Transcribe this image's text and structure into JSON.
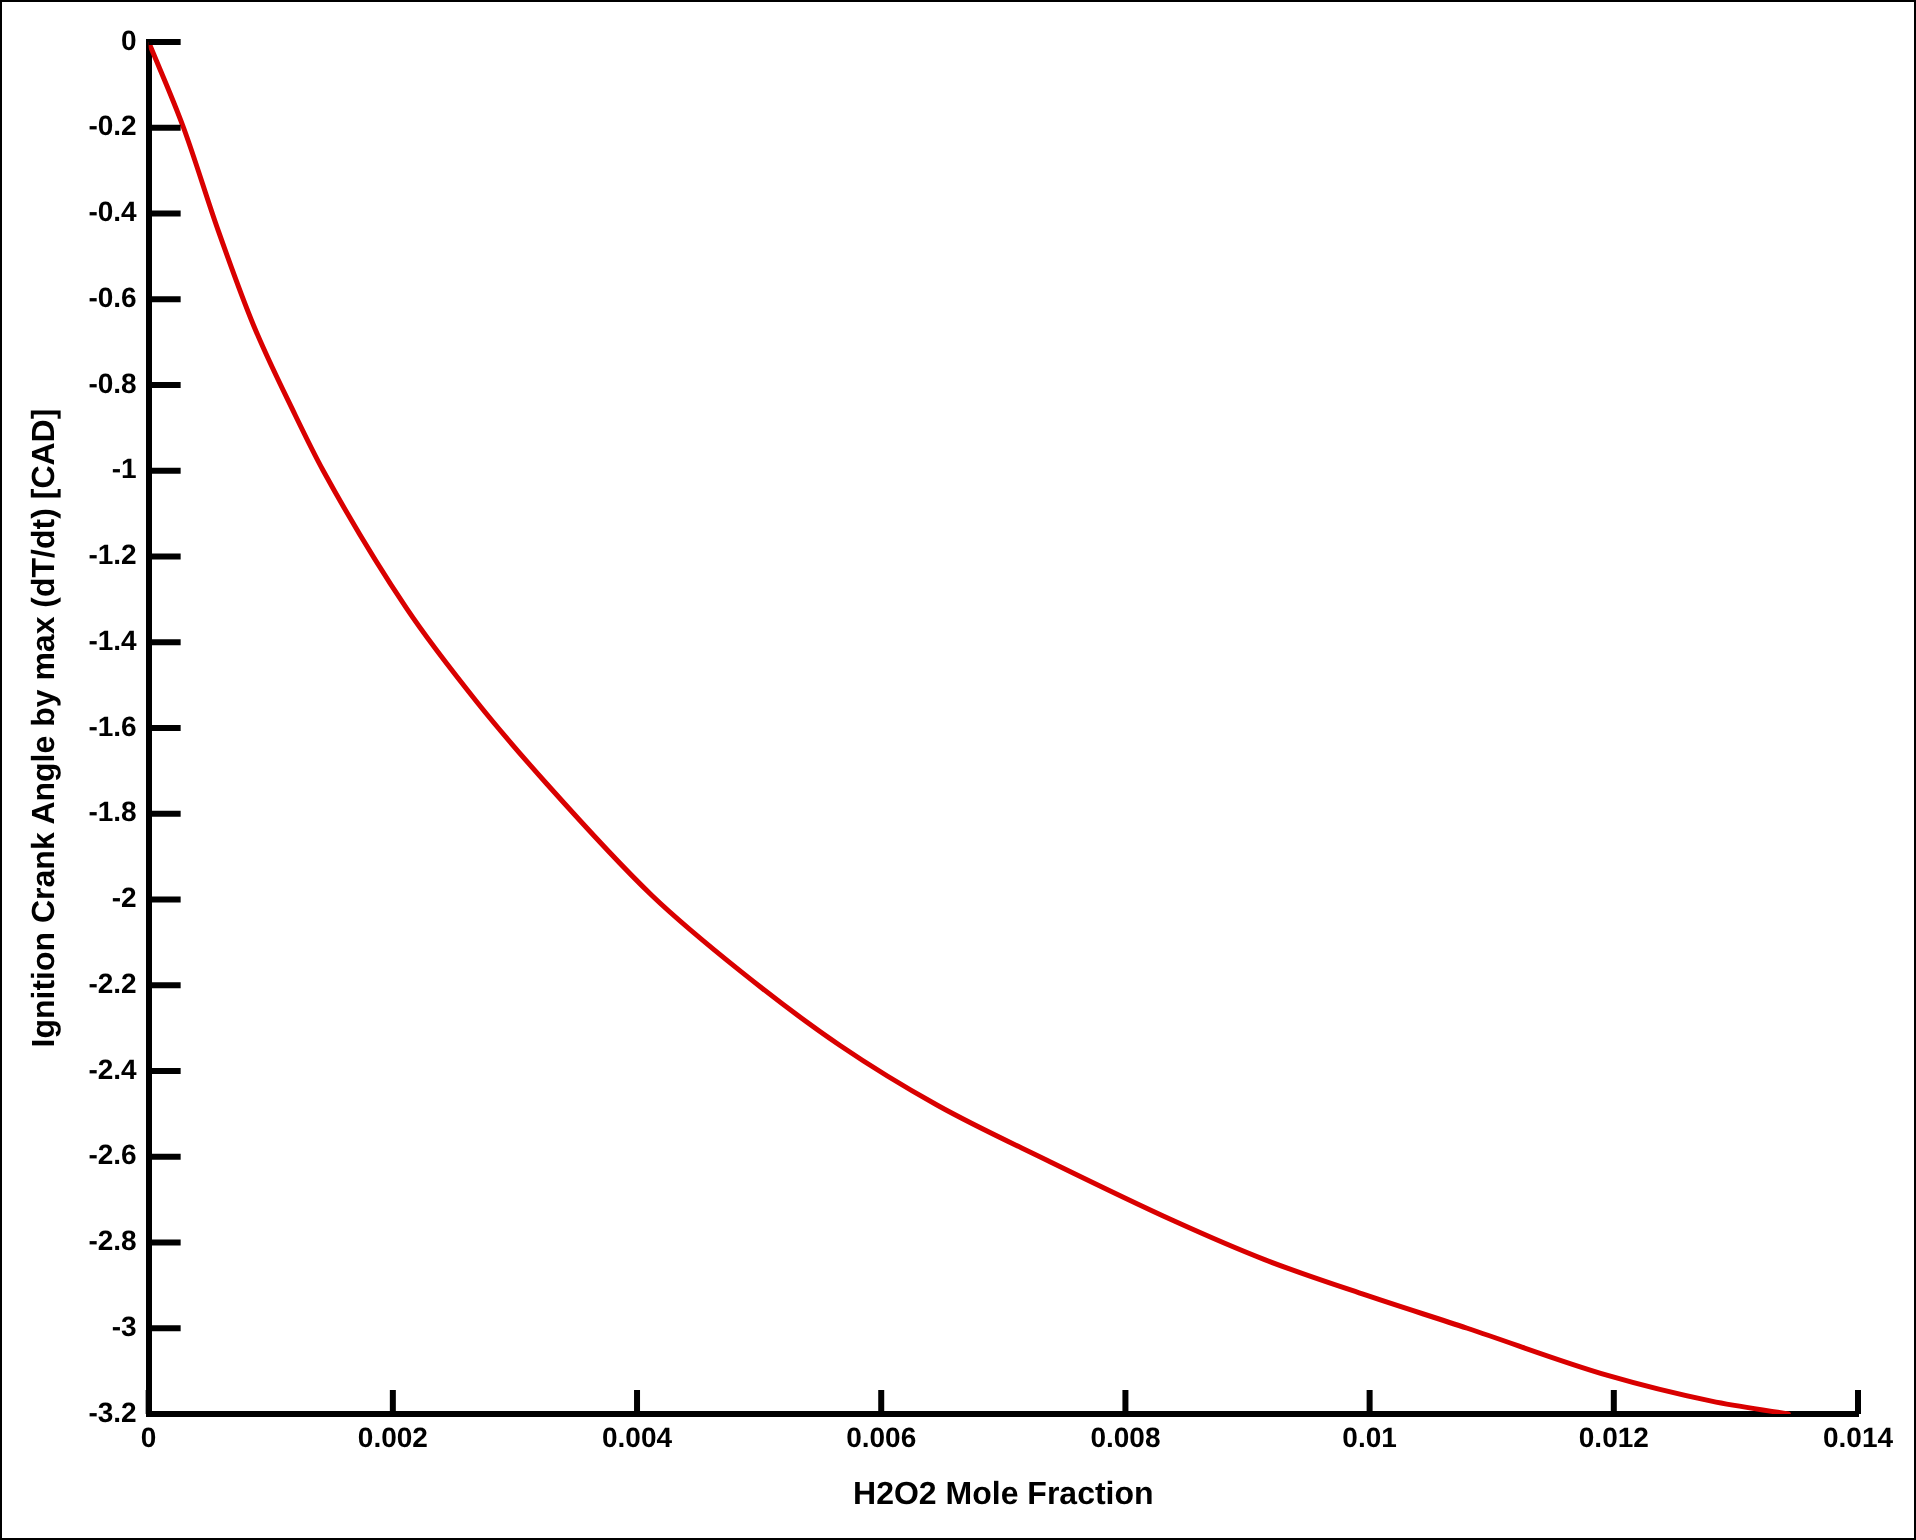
{
  "chart_data": {
    "type": "line",
    "xlabel": "H2O2 Mole Fraction",
    "ylabel": "Ignition Crank Angle by max (dT/dt) [CAD]",
    "x": [
      0,
      0.000286,
      0.00057,
      0.000858,
      0.0012,
      0.00143,
      0.00211,
      0.00269,
      0.00326,
      0.00412,
      0.00486,
      0.00566,
      0.00646,
      0.00737,
      0.0084,
      0.00914,
      0.00994,
      0.0108,
      0.01195,
      0.0128,
      0.01343
    ],
    "series": [
      {
        "color": "#d90000",
        "values": [
          0,
          -0.2,
          -0.44,
          -0.66,
          -0.87,
          -1,
          -1.32,
          -1.54,
          -1.73,
          -1.99,
          -2.17,
          -2.34,
          -2.48,
          -2.61,
          -2.75,
          -2.84,
          -2.92,
          -3,
          -3.11,
          -3.17,
          -3.2
        ]
      }
    ],
    "xlim": [
      0,
      0.014
    ],
    "xticks": [
      0,
      0.002,
      0.004,
      0.006,
      0.008,
      0.01,
      0.012,
      0.014
    ],
    "ylim": [
      -3.2,
      0
    ],
    "yticks": [
      -3.2,
      -3,
      -2.8,
      -2.6,
      -2.4,
      -2.2,
      -2,
      -1.8,
      -1.6,
      -1.4,
      -1.2,
      -1,
      -0.8,
      -0.6,
      -0.4,
      -0.2,
      0
    ],
    "grid": false,
    "legend": false,
    "marker": "none",
    "line_style": "solid"
  }
}
